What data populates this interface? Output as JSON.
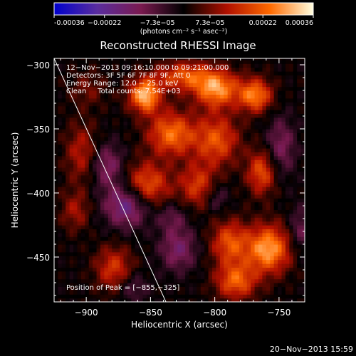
{
  "chart_data": {
    "type": "heatmap",
    "title": "Reconstructed RHESSI Image",
    "xlabel": "Heliocentric X (arcsec)",
    "ylabel": "Heliocentric Y (arcsec)",
    "xlim": [
      -925,
      -730
    ],
    "ylim": [
      -485,
      -295
    ],
    "xticks": [
      -900,
      -850,
      -800,
      -750
    ],
    "yticks": [
      -300,
      -350,
      -400,
      -450
    ],
    "xtick_labels": [
      "−900",
      "−850",
      "−800",
      "−750"
    ],
    "ytick_labels": [
      "−300",
      "−350",
      "−400",
      "−450"
    ],
    "colorbar": {
      "ticks": [
        "-0.00036",
        "−0.00022",
        "−7.3e−05",
        "7.3e−05",
        "0.00022",
        "0.00036"
      ],
      "tick_values": [
        -0.00036,
        -0.00022,
        -7.3e-05,
        7.3e-05,
        0.00022,
        0.00036
      ],
      "range": [
        -0.00036,
        0.00036
      ],
      "unit_label": "(photons cm⁻² s⁻¹ asec⁻²)",
      "colors": [
        "#0000cc",
        "#5a2d9e",
        "#7a1a50",
        "#000000",
        "#b01000",
        "#ff6a00",
        "#ffffe0"
      ]
    },
    "annotations": [
      "12−Nov−2013 09:16:10.000 to 09:21:00.000",
      "Detectors: 3F 5F 6F 7F 8F 9F, Att 0",
      "Energy Range: 12.0 − 25.0 keV",
      "Clean     Total counts: 7.54E+03"
    ],
    "peak_label": "Position of Peak = [−855,−325]",
    "peak": [
      -855,
      -325
    ],
    "limb_line": [
      [
        -925,
        -295
      ],
      [
        -838,
        -485
      ]
    ],
    "sources": [
      {
        "x": -855,
        "y": -325,
        "value": 0.00036,
        "sx": 9,
        "sy": 9
      },
      {
        "x": -800,
        "y": -320,
        "value": 0.0003,
        "sx": 12,
        "sy": 10
      },
      {
        "x": -770,
        "y": -325,
        "value": 0.00028,
        "sx": 9,
        "sy": 9
      },
      {
        "x": -825,
        "y": -310,
        "value": 0.00022,
        "sx": 15,
        "sy": 8
      },
      {
        "x": -835,
        "y": -355,
        "value": 0.00026,
        "sx": 13,
        "sy": 12
      },
      {
        "x": -800,
        "y": -360,
        "value": 0.00022,
        "sx": 12,
        "sy": 14
      },
      {
        "x": -855,
        "y": -395,
        "value": 0.00024,
        "sx": 13,
        "sy": 12
      },
      {
        "x": -815,
        "y": -395,
        "value": 0.00018,
        "sx": 10,
        "sy": 12
      },
      {
        "x": -765,
        "y": -385,
        "value": 0.00022,
        "sx": 8,
        "sy": 12
      },
      {
        "x": -760,
        "y": -445,
        "value": 0.00032,
        "sx": 12,
        "sy": 13
      },
      {
        "x": -790,
        "y": -440,
        "value": 0.00022,
        "sx": 10,
        "sy": 12
      },
      {
        "x": -785,
        "y": -470,
        "value": 0.00024,
        "sx": 11,
        "sy": 10
      },
      {
        "x": -880,
        "y": -460,
        "value": 0.00018,
        "sx": 10,
        "sy": 12
      },
      {
        "x": -905,
        "y": -370,
        "value": 0.00014,
        "sx": 9,
        "sy": 16
      },
      {
        "x": -910,
        "y": -415,
        "value": 0.00012,
        "sx": 8,
        "sy": 11
      },
      {
        "x": -900,
        "y": -320,
        "value": 8e-05,
        "sx": 10,
        "sy": 10
      },
      {
        "x": -870,
        "y": -410,
        "value": -0.00024,
        "sx": 12,
        "sy": 12
      },
      {
        "x": -885,
        "y": -380,
        "value": -0.00016,
        "sx": 9,
        "sy": 12
      },
      {
        "x": -750,
        "y": -365,
        "value": -0.00014,
        "sx": 8,
        "sy": 16
      },
      {
        "x": -735,
        "y": -430,
        "value": -0.00012,
        "sx": 6,
        "sy": 12
      },
      {
        "x": -830,
        "y": -445,
        "value": -0.00016,
        "sx": 10,
        "sy": 12
      },
      {
        "x": -800,
        "y": -405,
        "value": -0.0001,
        "sx": 6,
        "sy": 8
      },
      {
        "x": -835,
        "y": -420,
        "value": -0.0001,
        "sx": 8,
        "sy": 8
      },
      {
        "x": -865,
        "y": -475,
        "value": -0.0001,
        "sx": 8,
        "sy": 8
      },
      {
        "x": -845,
        "y": -325,
        "value": -6e-05,
        "sx": 5,
        "sy": 5
      }
    ]
  },
  "footer": {
    "timestamp": "20−Nov−2013 15:59"
  }
}
